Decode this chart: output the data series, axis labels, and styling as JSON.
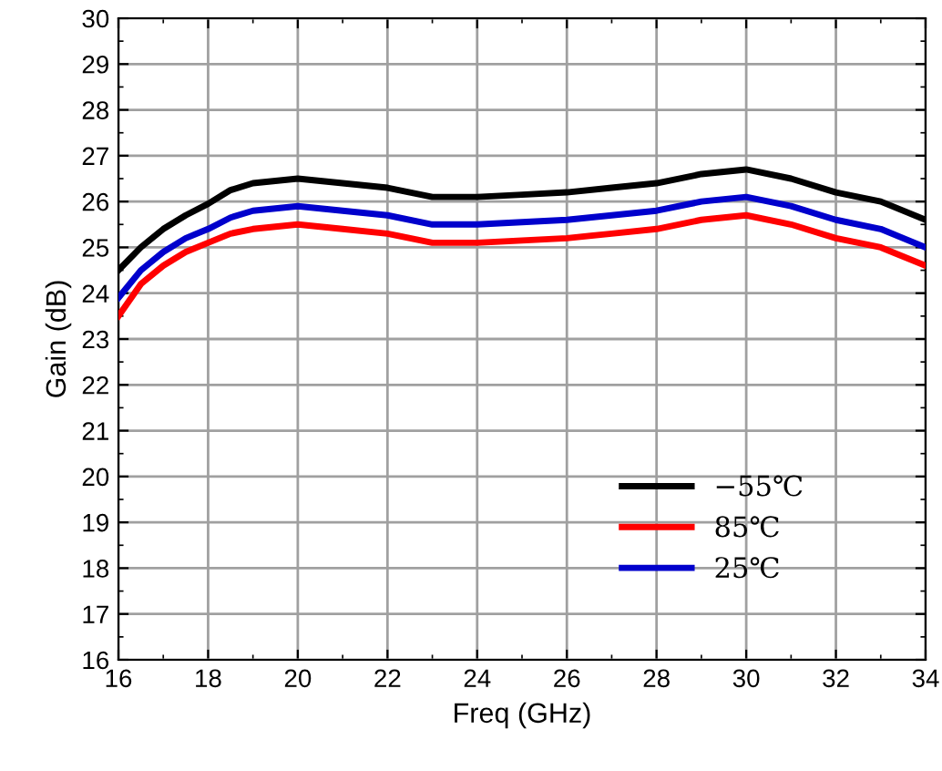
{
  "chart_data": {
    "type": "line",
    "xlabel": "Freq (GHz)",
    "ylabel": "Gain (dB)",
    "xlim": [
      16,
      34
    ],
    "xticks": [
      16,
      18,
      20,
      22,
      24,
      26,
      28,
      30,
      32,
      34
    ],
    "ylim": [
      16,
      30
    ],
    "yticks": [
      16,
      17,
      18,
      19,
      20,
      21,
      22,
      23,
      24,
      25,
      26,
      27,
      28,
      29,
      30
    ],
    "x": [
      16,
      16.5,
      17,
      17.5,
      18,
      18.5,
      19,
      20,
      21,
      22,
      23,
      24,
      25,
      26,
      27,
      28,
      29,
      30,
      31,
      32,
      33,
      34
    ],
    "grid": true,
    "legend": "bottom right",
    "marker": "none",
    "line_style": "solid",
    "series": [
      {
        "name": "−55℃",
        "color": "#000000",
        "values": [
          24.5,
          25.0,
          25.4,
          25.7,
          25.95,
          26.25,
          26.4,
          26.5,
          26.4,
          26.3,
          26.1,
          26.1,
          26.15,
          26.2,
          26.3,
          26.4,
          26.6,
          26.7,
          26.5,
          26.2,
          26.0,
          25.6
        ]
      },
      {
        "name": "85℃",
        "color": "#ff0000",
        "values": [
          23.5,
          24.2,
          24.6,
          24.9,
          25.1,
          25.3,
          25.4,
          25.5,
          25.4,
          25.3,
          25.1,
          25.1,
          25.15,
          25.2,
          25.3,
          25.4,
          25.6,
          25.7,
          25.5,
          25.2,
          25.0,
          24.6
        ]
      },
      {
        "name": "25℃",
        "color": "#0000cc",
        "values": [
          23.9,
          24.5,
          24.9,
          25.2,
          25.4,
          25.65,
          25.8,
          25.9,
          25.8,
          25.7,
          25.5,
          25.5,
          25.55,
          25.6,
          25.7,
          25.8,
          26.0,
          26.1,
          25.9,
          25.6,
          25.4,
          25.0
        ]
      }
    ]
  }
}
